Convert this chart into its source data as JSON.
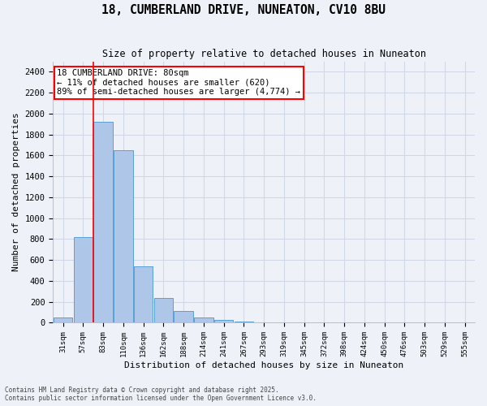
{
  "title": "18, CUMBERLAND DRIVE, NUNEATON, CV10 8BU",
  "subtitle": "Size of property relative to detached houses in Nuneaton",
  "xlabel": "Distribution of detached houses by size in Nuneaton",
  "ylabel": "Number of detached properties",
  "bar_values": [
    50,
    820,
    1920,
    1650,
    540,
    235,
    115,
    50,
    30,
    15,
    5,
    0,
    0,
    0,
    0,
    0,
    0,
    0,
    0,
    0,
    0
  ],
  "categories": [
    "31sqm",
    "57sqm",
    "83sqm",
    "110sqm",
    "136sqm",
    "162sqm",
    "188sqm",
    "214sqm",
    "241sqm",
    "267sqm",
    "293sqm",
    "319sqm",
    "345sqm",
    "372sqm",
    "398sqm",
    "424sqm",
    "450sqm",
    "476sqm",
    "503sqm",
    "529sqm",
    "555sqm"
  ],
  "bar_color": "#aec6e8",
  "bar_edge_color": "#5a9fd4",
  "grid_color": "#d0d8e8",
  "background_color": "#eef2f8",
  "vline_x": 1.525,
  "vline_color": "red",
  "annotation_text": "18 CUMBERLAND DRIVE: 80sqm\n← 11% of detached houses are smaller (620)\n89% of semi-detached houses are larger (4,774) →",
  "annotation_box_color": "white",
  "annotation_box_edge": "red",
  "ylim": [
    0,
    2500
  ],
  "yticks": [
    0,
    200,
    400,
    600,
    800,
    1000,
    1200,
    1400,
    1600,
    1800,
    2000,
    2200,
    2400
  ],
  "footer1": "Contains HM Land Registry data © Crown copyright and database right 2025.",
  "footer2": "Contains public sector information licensed under the Open Government Licence v3.0."
}
